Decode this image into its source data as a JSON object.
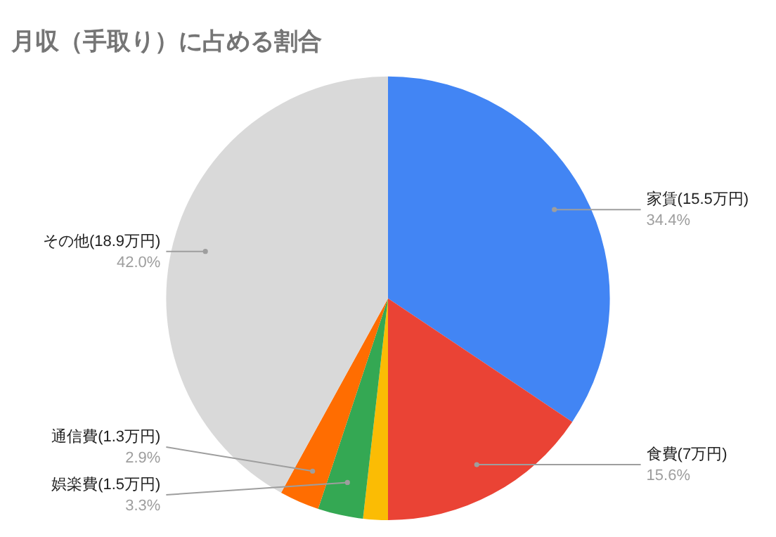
{
  "chart_data": {
    "type": "pie",
    "title": "月収（手取り）に占める割合",
    "categories": [
      "家賃(15.5万円)",
      "食費(7万円)",
      null,
      "娯楽費(1.5万円)",
      "通信費(1.3万円)",
      "その他(18.9万円)"
    ],
    "values": [
      34.4,
      15.6,
      1.8,
      3.3,
      2.9,
      42.0
    ],
    "value_labels": [
      "34.4%",
      "15.6%",
      null,
      "3.3%",
      "2.9%",
      "42.0%"
    ],
    "colors": [
      "#4285f4",
      "#ea4335",
      "#fbbc04",
      "#34a853",
      "#ff6d01",
      "#d9d9d9"
    ]
  }
}
